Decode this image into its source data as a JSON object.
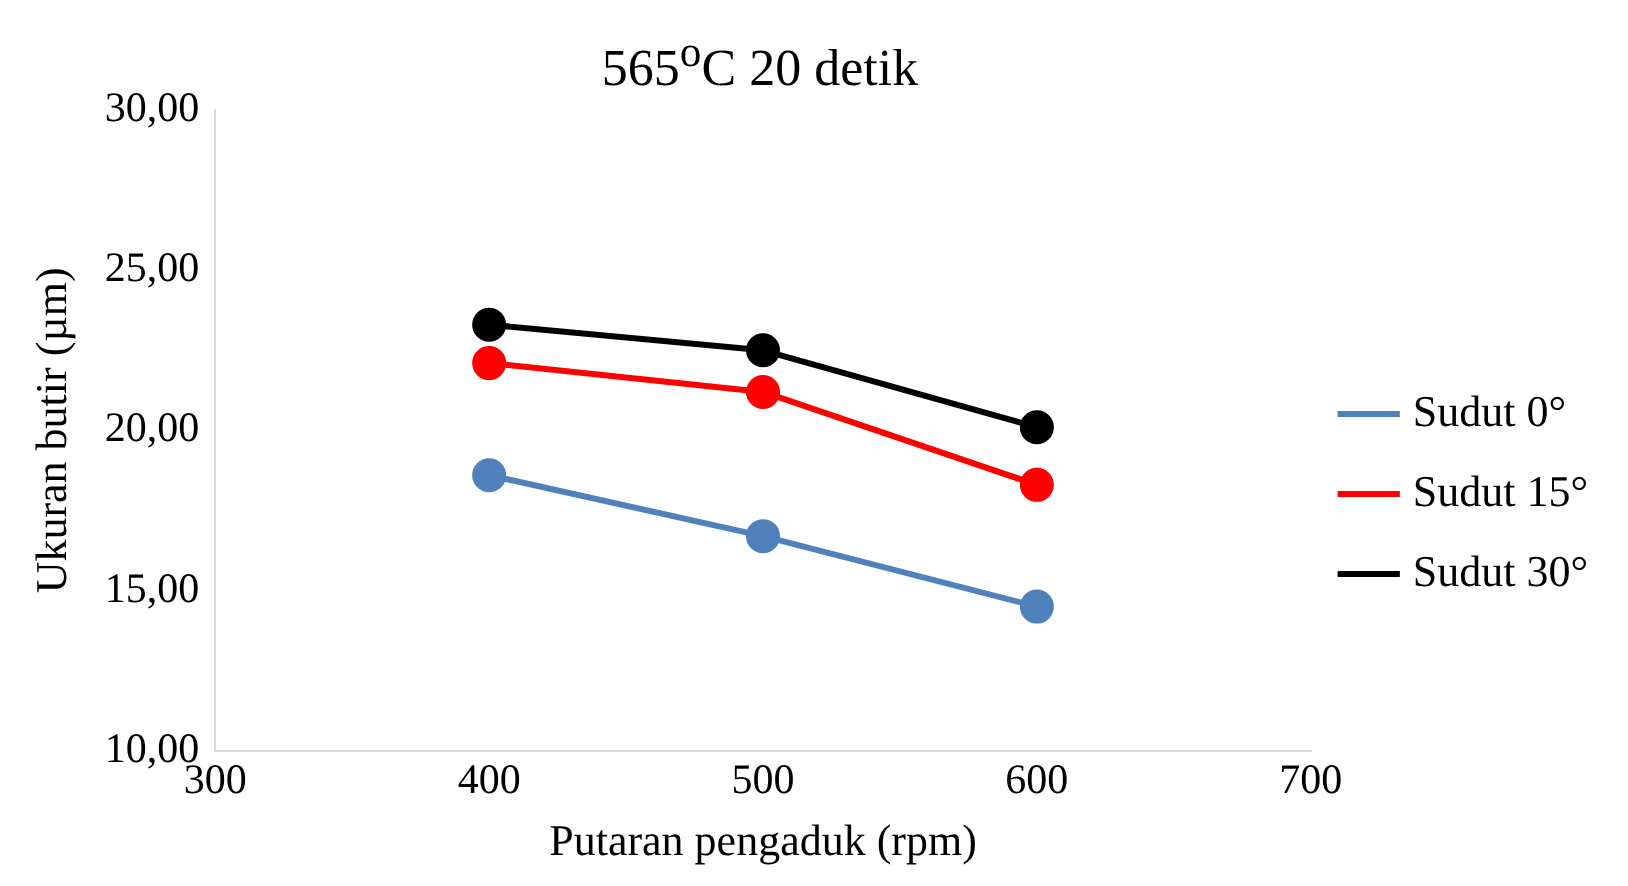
{
  "chart_data": {
    "type": "line",
    "title": "565$^{o}$C 20 detik",
    "xlabel": "Putaran pengaduk (rpm)",
    "ylabel": "Ukuran butir (µm)",
    "x": [
      400,
      500,
      600
    ],
    "series": [
      {
        "name": "Sudut 0°",
        "color": "#4f81bd",
        "values": [
          18.6,
          16.7,
          14.5
        ]
      },
      {
        "name": "Sudut 15°",
        "color": "#ff0000",
        "values": [
          22.1,
          21.2,
          18.3
        ]
      },
      {
        "name": "Sudut 30°",
        "color": "#000000",
        "values": [
          23.3,
          22.5,
          20.1
        ]
      }
    ],
    "xlim": [
      300,
      700
    ],
    "xticks": [
      300,
      400,
      500,
      600,
      700
    ],
    "ylim": [
      10,
      30
    ],
    "yticks": [
      {
        "value": 10,
        "label": "10,00"
      },
      {
        "value": 15,
        "label": "15,00"
      },
      {
        "value": 20,
        "label": "20,00"
      },
      {
        "value": 25,
        "label": "25,00"
      },
      {
        "value": 30,
        "label": "30,00"
      }
    ],
    "grid": false,
    "legend": "right",
    "marker": "circle",
    "line_style": "solid"
  }
}
